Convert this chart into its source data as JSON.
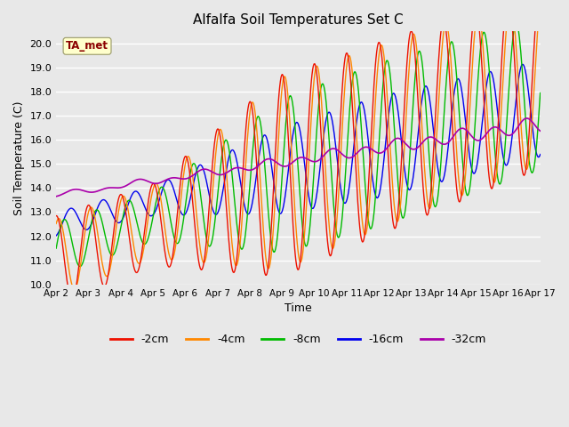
{
  "title": "Alfalfa Soil Temperatures Set C",
  "xlabel": "Time",
  "ylabel": "Soil Temperature (C)",
  "ylim": [
    10.0,
    20.5
  ],
  "yticks": [
    10.0,
    11.0,
    12.0,
    13.0,
    14.0,
    15.0,
    16.0,
    17.0,
    18.0,
    19.0,
    20.0
  ],
  "bg_color": "#e8e8e8",
  "plot_bg_color": "#e8e8e8",
  "annotation_text": "TA_met",
  "annotation_color": "#8b0000",
  "annotation_bg": "#ffffcc",
  "colors": {
    "-2cm": "#ee1100",
    "-4cm": "#ff8800",
    "-8cm": "#00bb00",
    "-16cm": "#0000ee",
    "-32cm": "#aa00aa"
  },
  "x_labels": [
    "Apr 2",
    "Apr 3",
    "Apr 4",
    "Apr 5",
    "Apr 6",
    "Apr 7",
    "Apr 8",
    "Apr 9",
    "Apr 10",
    "Apr 11",
    "Apr 12",
    "Apr 13",
    "Apr 14",
    "Apr 15",
    "Apr 16",
    "Apr 17"
  ]
}
